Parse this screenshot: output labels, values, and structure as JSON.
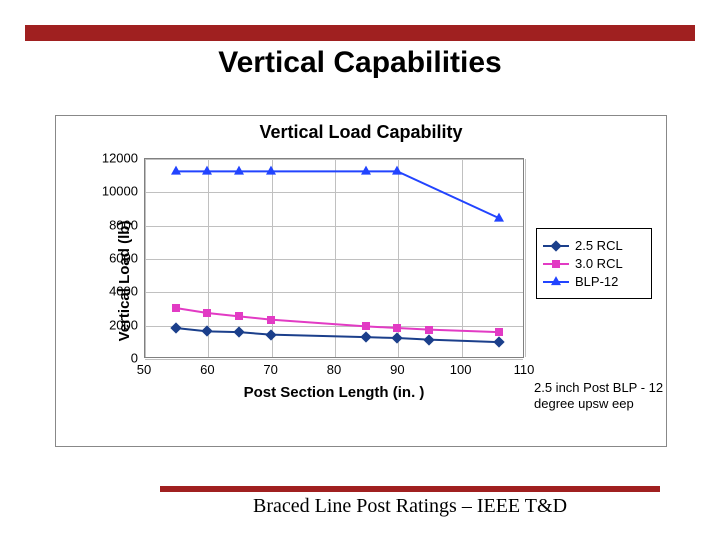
{
  "brand_color": "#a02020",
  "slide_title": "Vertical Capabilities",
  "footer": "Braced Line Post Ratings – IEEE T&D",
  "chart": {
    "title": "Vertical Load Capability",
    "xlabel": "Post Section Length (in. )",
    "ylabel": "Vertical Load (lb)",
    "note": "2.5 inch Post BLP - 12 degree upsw eep",
    "background_color": "#ffffff",
    "grid_color": "#c0c0c0",
    "plot_border_color": "#808080",
    "label_fontsize": 15,
    "title_fontsize": 18,
    "tick_fontsize": 13,
    "x": {
      "min": 50,
      "max": 110,
      "ticks": [
        50,
        60,
        70,
        80,
        90,
        100,
        110
      ]
    },
    "y": {
      "min": 0,
      "max": 12000,
      "ticks": [
        0,
        2000,
        4000,
        6000,
        8000,
        10000,
        12000
      ]
    },
    "series": [
      {
        "name": "2.5 RCL",
        "color": "#1b3f8b",
        "marker": "diamond",
        "x": [
          55,
          60,
          65,
          70,
          85,
          90,
          95,
          106
        ],
        "y": [
          1800,
          1600,
          1550,
          1400,
          1250,
          1200,
          1100,
          950
        ]
      },
      {
        "name": "3.0 RCL",
        "color": "#e23bc4",
        "marker": "square",
        "x": [
          55,
          60,
          65,
          70,
          85,
          90,
          95,
          106
        ],
        "y": [
          3000,
          2700,
          2500,
          2300,
          1900,
          1800,
          1700,
          1550
        ]
      },
      {
        "name": "BLP-12",
        "color": "#2244ff",
        "marker": "triangle",
        "x": [
          55,
          60,
          65,
          70,
          85,
          90,
          106
        ],
        "y": [
          11200,
          11200,
          11200,
          11200,
          11200,
          11200,
          8400
        ]
      }
    ]
  }
}
